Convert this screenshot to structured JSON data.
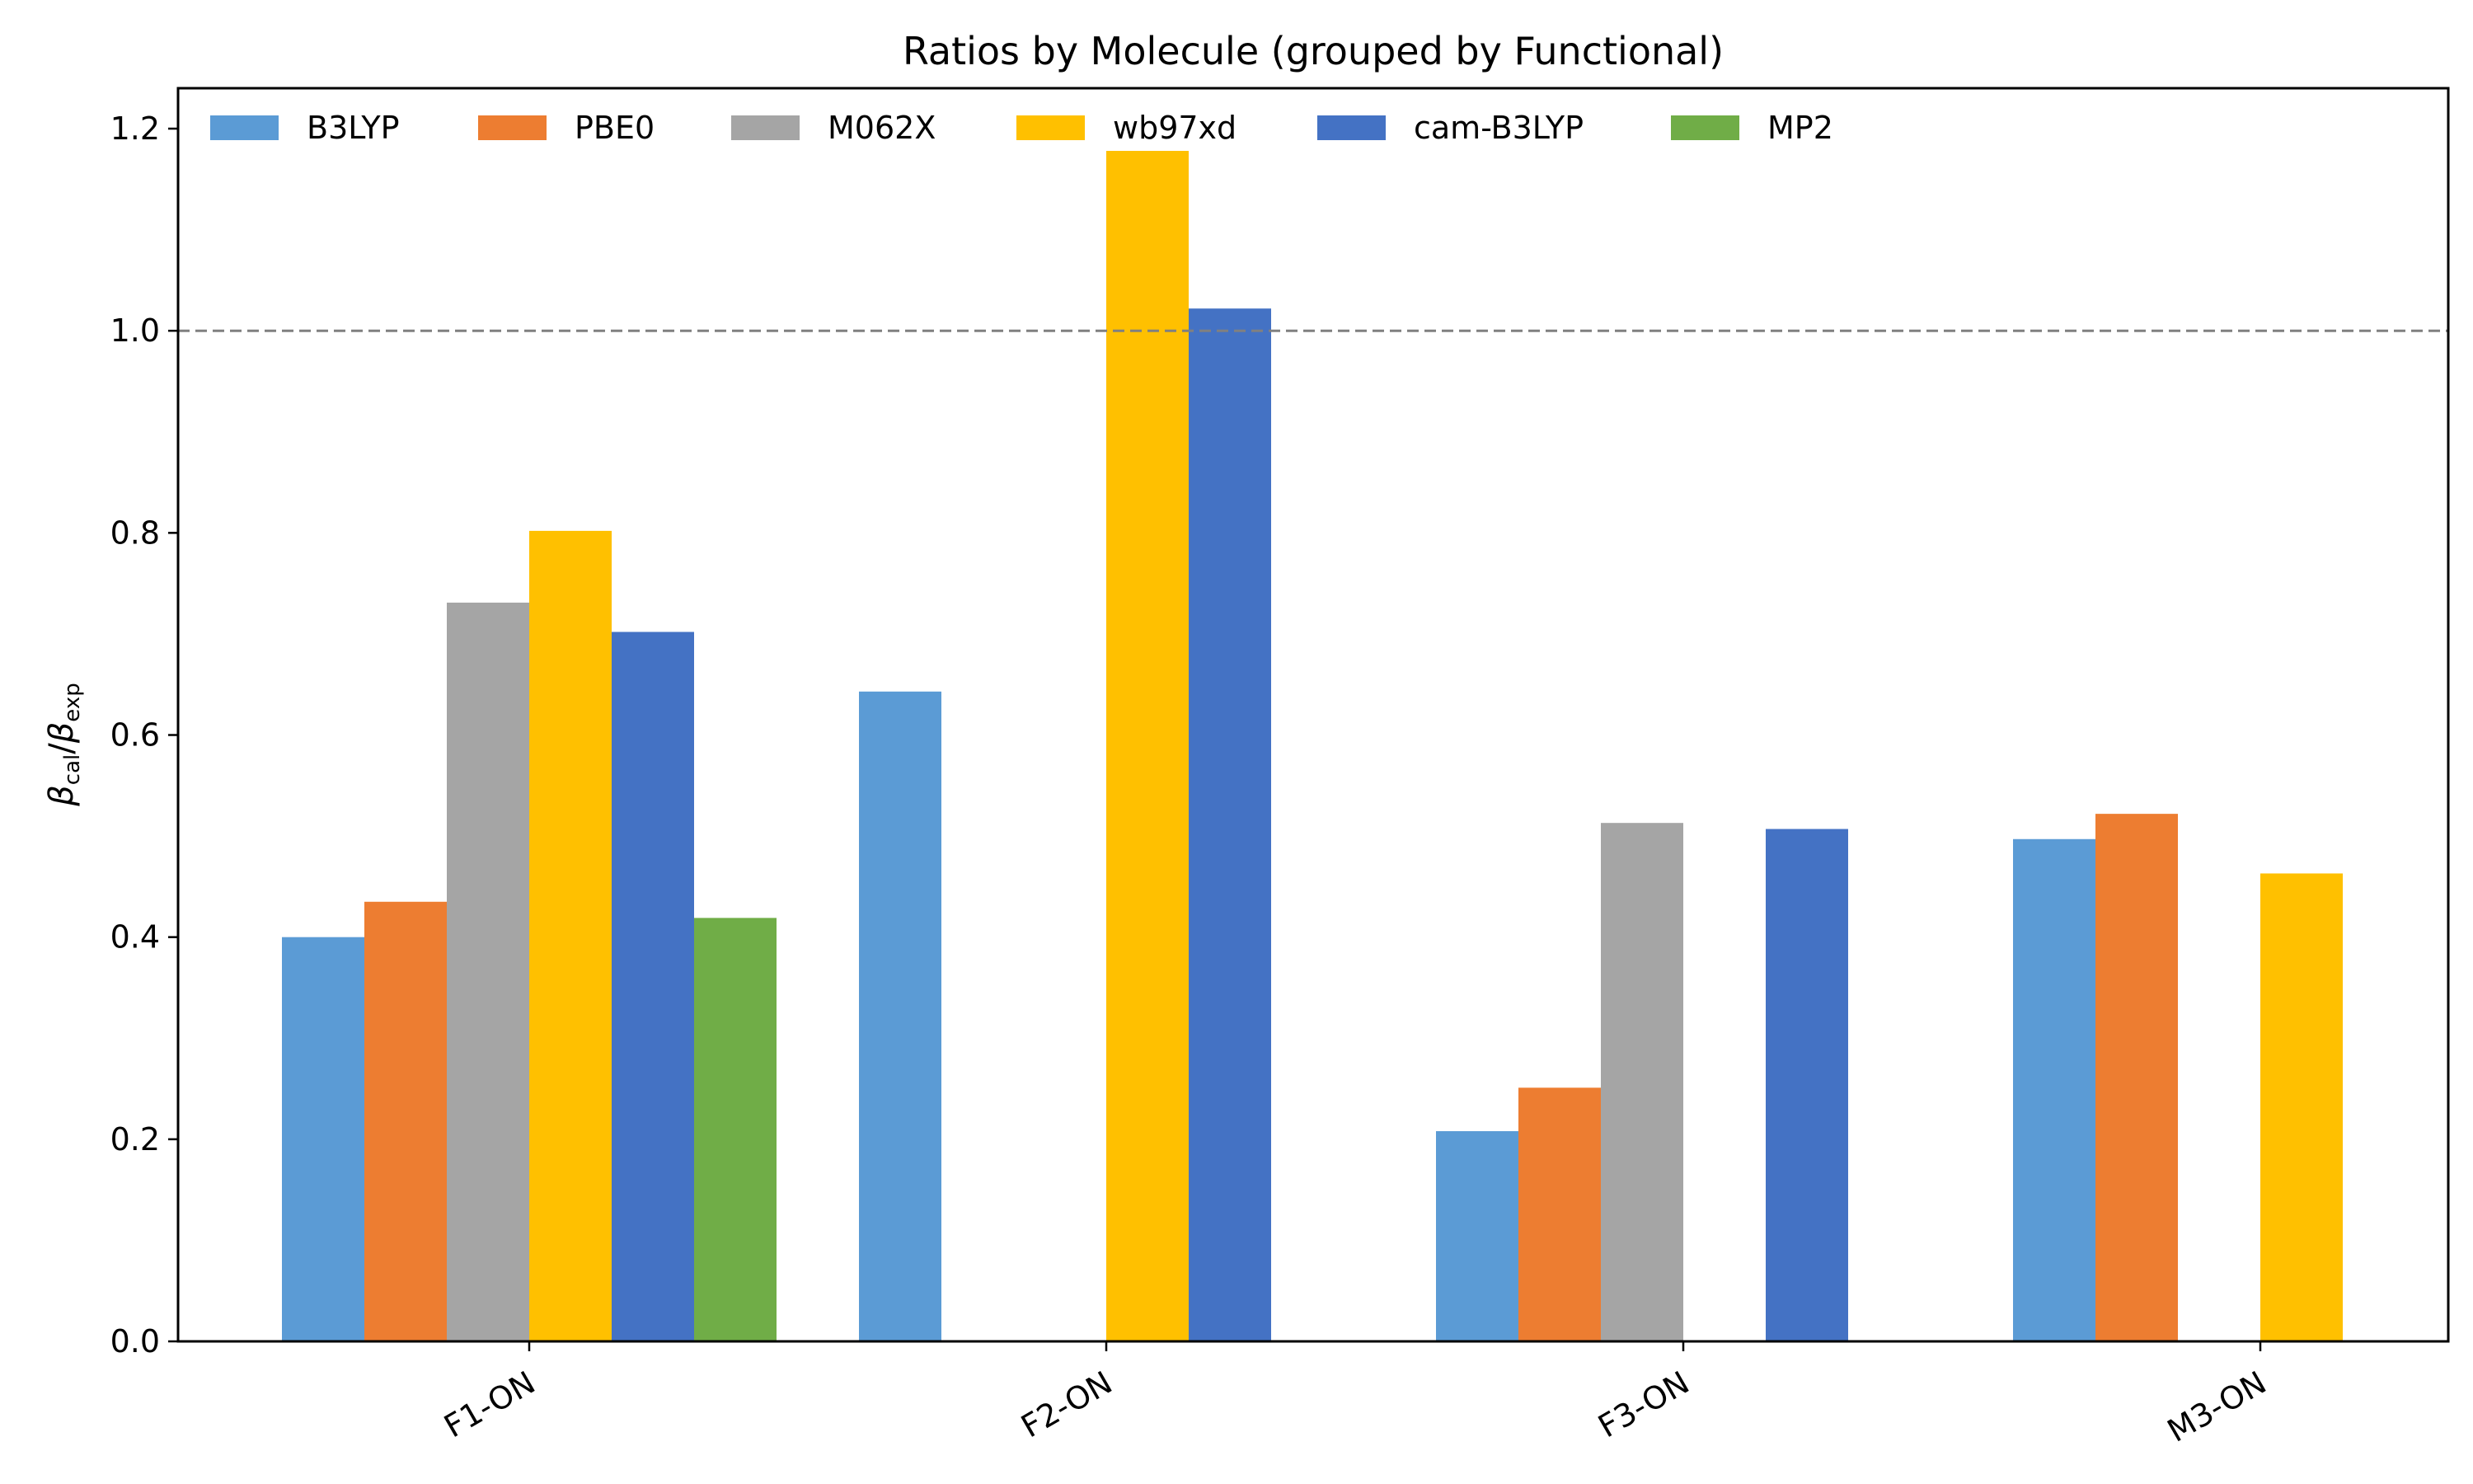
{
  "chart_data": {
    "type": "bar",
    "title": "Ratios by Molecule (grouped by Functional)",
    "xlabel": "",
    "ylabel": "βcal/βexp",
    "ylabel_parts": {
      "sym": "β",
      "sub1": "cal",
      "sep": "/",
      "sub2": "exp"
    },
    "categories": [
      "F1-ON",
      "F2-ON",
      "F3-ON",
      "M3-ON"
    ],
    "series": [
      {
        "name": "B3LYP",
        "color": "#5b9bd5",
        "values": [
          0.4,
          0.643,
          0.208,
          0.497
        ]
      },
      {
        "name": "PBE0",
        "color": "#ed7d31",
        "values": [
          0.435,
          null,
          0.251,
          0.522
        ]
      },
      {
        "name": "M062X",
        "color": "#a5a5a5",
        "values": [
          0.731,
          null,
          0.513,
          null
        ]
      },
      {
        "name": "wb97xd",
        "color": "#ffc000",
        "values": [
          0.802,
          1.178,
          null,
          0.463
        ]
      },
      {
        "name": "cam-B3LYP",
        "color": "#4472c4",
        "values": [
          0.702,
          1.022,
          0.507,
          null
        ]
      },
      {
        "name": "MP2",
        "color": "#70ad47",
        "values": [
          0.419,
          null,
          null,
          null
        ]
      }
    ],
    "ylim": [
      0,
      1.24
    ],
    "yticks": [
      "0.0",
      "0.2",
      "0.4",
      "0.6",
      "0.8",
      "1.0",
      "1.2"
    ],
    "reference_line": {
      "y": 1.0,
      "style": "dashed",
      "color": "#808080"
    },
    "grid": false,
    "legend_position": "top-left"
  }
}
